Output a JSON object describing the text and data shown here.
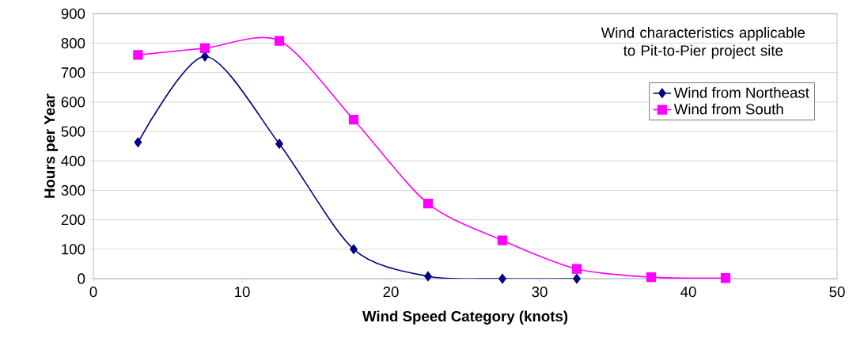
{
  "chart_data": {
    "type": "line",
    "xlabel": "Wind Speed Category (knots)",
    "ylabel": "Hours per Year",
    "annotations": [
      "Wind characteristics applicable to Pit-to-Pier project site"
    ],
    "series": [
      {
        "name": "Wind from Northeast",
        "color": "#000080",
        "marker": "diamond",
        "x": [
          3,
          7.5,
          12.5,
          17.5,
          22.5,
          27.5,
          32.5
        ],
        "values": [
          463,
          755,
          458,
          100,
          8,
          0,
          0
        ]
      },
      {
        "name": "Wind from South",
        "color": "#ff00ff",
        "marker": "square",
        "x": [
          3,
          7.5,
          12.5,
          17.5,
          22.5,
          27.5,
          32.5,
          37.5,
          42.5
        ],
        "values": [
          760,
          783,
          808,
          540,
          255,
          130,
          33,
          5,
          2
        ]
      }
    ],
    "xlim": [
      0,
      50
    ],
    "ylim": [
      0,
      900
    ],
    "xticks": [
      0,
      10,
      20,
      30,
      40,
      50
    ],
    "yticks": [
      0,
      100,
      200,
      300,
      400,
      500,
      600,
      700,
      800,
      900
    ],
    "grid": "y",
    "legend": "top right"
  }
}
